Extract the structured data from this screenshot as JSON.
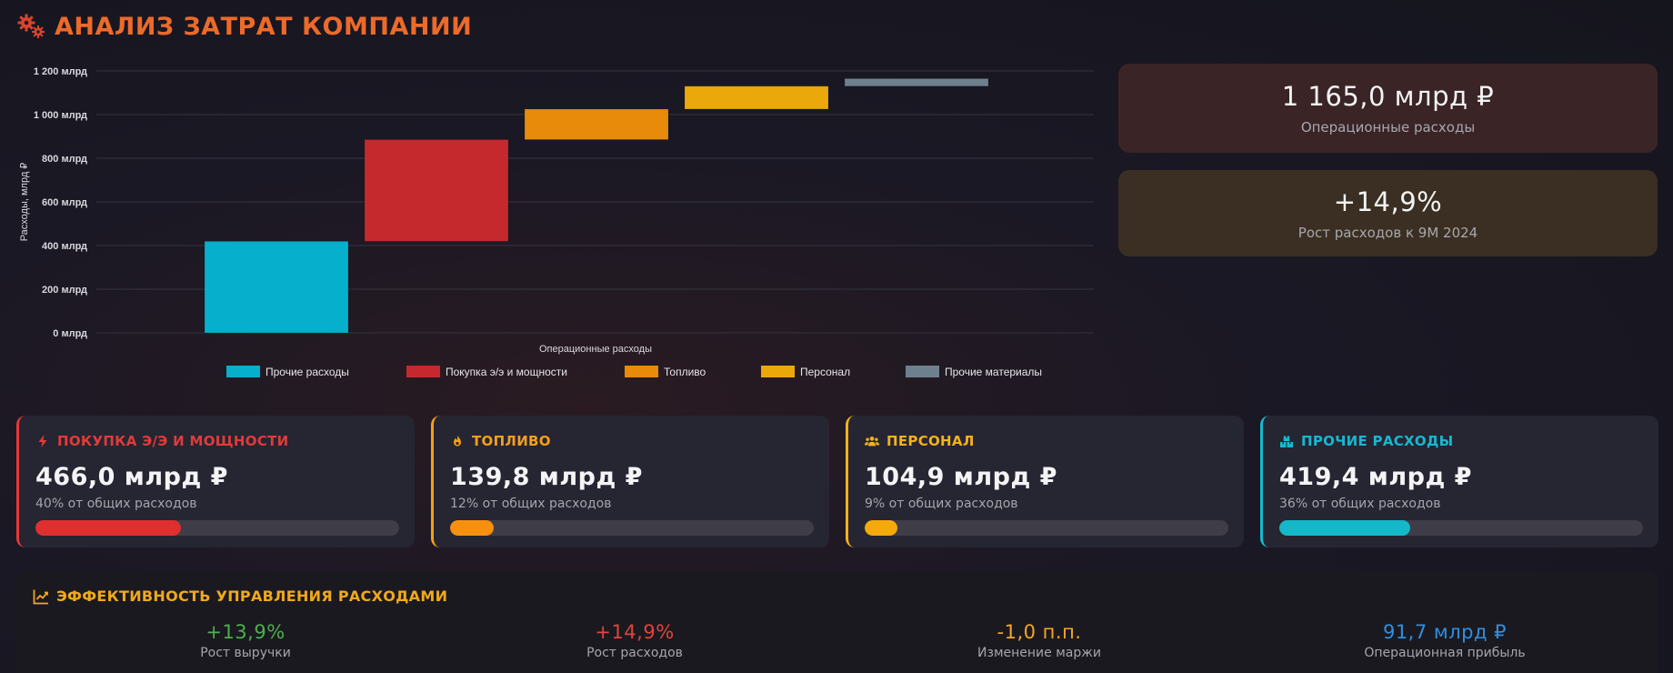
{
  "header": {
    "title": "АНАЛИЗ ЗАТРАТ КОМПАНИИ",
    "icon": "gears-icon",
    "color": "#ec6a2a"
  },
  "chart_data": {
    "type": "bar",
    "subtype": "waterfall",
    "title": "",
    "xlabel": "Операционные расходы",
    "ylabel": "Расходы, млрд ₽",
    "ylim": [
      0,
      1200
    ],
    "yticks": [
      {
        "value": 0,
        "label": "0 млрд"
      },
      {
        "value": 200,
        "label": "200 млрд"
      },
      {
        "value": 400,
        "label": "400 млрд"
      },
      {
        "value": 600,
        "label": "600 млрд"
      },
      {
        "value": 800,
        "label": "800 млрд"
      },
      {
        "value": 1000,
        "label": "1 000 млрд"
      },
      {
        "value": 1200,
        "label": "1 200 млрд"
      }
    ],
    "grid": true,
    "legend_position": "bottom",
    "series": [
      {
        "name": "Прочие расходы",
        "base": 0,
        "value": 419.4,
        "color": "#06b0cc"
      },
      {
        "name": "Покупка э/э и мощности",
        "base": 419.4,
        "value": 466.0,
        "color": "#c5292e"
      },
      {
        "name": "Топливо",
        "base": 885.4,
        "value": 139.8,
        "color": "#e88a0a"
      },
      {
        "name": "Персонал",
        "base": 1025.2,
        "value": 104.9,
        "color": "#eba80a"
      },
      {
        "name": "Прочие материалы",
        "base": 1130.1,
        "value": 34.9,
        "color": "#6e808e"
      }
    ]
  },
  "kpis": [
    {
      "value": "1 165,0 млрд ₽",
      "label": "Операционные расходы"
    },
    {
      "value": "+14,9%",
      "label": "Рост расходов к 9М 2024"
    }
  ],
  "cards": [
    {
      "icon": "lightning-icon",
      "title": "ПОКУПКА Э/Э И МОЩНОСТИ",
      "value": "466,0 млрд ₽",
      "sub": "40% от общих расходов",
      "percent": 40,
      "color": "#e03b3b",
      "bar_color": "#e02f2f"
    },
    {
      "icon": "fire-icon",
      "title": "ТОПЛИВО",
      "value": "139,8 млрд ₽",
      "sub": "12% от общих расходов",
      "percent": 12,
      "color": "#f5a01a",
      "bar_color": "#f7900f"
    },
    {
      "icon": "users-icon",
      "title": "ПЕРСОНАЛ",
      "value": "104,9 млрд ₽",
      "sub": "9% от общих расходов",
      "percent": 9,
      "color": "#f5b21a",
      "bar_color": "#f5aa0a"
    },
    {
      "icon": "boxes-icon",
      "title": "ПРОЧИЕ РАСХОДЫ",
      "value": "419,4 млрд ₽",
      "sub": "36% от общих расходов",
      "percent": 36,
      "color": "#17b8cf",
      "bar_color": "#14b8c9"
    }
  ],
  "efficiency": {
    "title": "ЭФФЕКТИВНОСТЬ УПРАВЛЕНИЯ РАСХОДАМИ",
    "icon": "line-chart-icon",
    "items": [
      {
        "value": "+13,9%",
        "label": "Рост выручки",
        "color": "#4caf50"
      },
      {
        "value": "+14,9%",
        "label": "Рост расходов",
        "color": "#e0443a"
      },
      {
        "value": "-1,0 п.п.",
        "label": "Изменение маржи",
        "color": "#f5a623"
      },
      {
        "value": "91,7 млрд ₽",
        "label": "Операционная прибыль",
        "color": "#2f8fe0"
      }
    ]
  }
}
